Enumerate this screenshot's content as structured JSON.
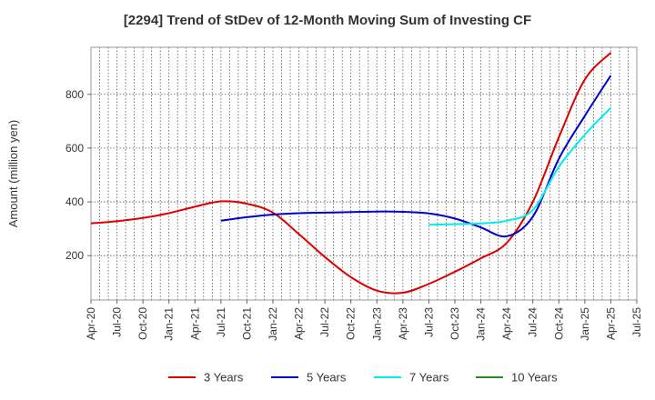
{
  "chart_data": {
    "type": "line",
    "title": "[2294]  Trend of StDev of 12-Month Moving Sum of Investing CF",
    "xlabel": "",
    "ylabel": "Amount (million yen)",
    "ylim": [
      35,
      975
    ],
    "yticks": [
      200,
      400,
      600,
      800
    ],
    "x_tick_labels": [
      "Apr-20",
      "Jul-20",
      "Oct-20",
      "Jan-21",
      "Apr-21",
      "Jul-21",
      "Oct-21",
      "Jan-22",
      "Apr-22",
      "Jul-22",
      "Oct-22",
      "Jan-23",
      "Apr-23",
      "Jul-23",
      "Oct-23",
      "Jan-24",
      "Apr-24",
      "Jul-24",
      "Oct-24",
      "Jan-25",
      "Apr-25",
      "Jul-25"
    ],
    "grid": true,
    "legend_position": "bottom",
    "series": [
      {
        "name": "3 Years",
        "color": "#dd0000",
        "x": [
          "Apr-20",
          "Jul-20",
          "Oct-20",
          "Jan-21",
          "Apr-21",
          "Jul-21",
          "Oct-21",
          "Jan-22",
          "Apr-22",
          "Jul-22",
          "Oct-22",
          "Jan-23",
          "Apr-23",
          "Jul-23",
          "Oct-23",
          "Jan-24",
          "Apr-24",
          "Jul-24",
          "Oct-24",
          "Jan-25",
          "Apr-25"
        ],
        "values": [
          320,
          328,
          340,
          358,
          382,
          402,
          393,
          360,
          280,
          195,
          120,
          70,
          62,
          95,
          140,
          190,
          248,
          400,
          640,
          855,
          955
        ]
      },
      {
        "name": "5 Years",
        "color": "#0000cc",
        "x": [
          "Jul-21",
          "Oct-21",
          "Jan-22",
          "Apr-22",
          "Jul-22",
          "Oct-22",
          "Jan-23",
          "Apr-23",
          "Jul-23",
          "Oct-23",
          "Jan-24",
          "Apr-24",
          "Jul-24",
          "Oct-24",
          "Jan-25",
          "Apr-25"
        ],
        "values": [
          330,
          343,
          353,
          358,
          360,
          362,
          364,
          363,
          357,
          338,
          305,
          272,
          345,
          560,
          720,
          870
        ]
      },
      {
        "name": "7 Years",
        "color": "#00eeee",
        "x": [
          "Jul-23",
          "Oct-23",
          "Jan-24",
          "Apr-24",
          "Jul-24",
          "Oct-24",
          "Jan-25",
          "Apr-25"
        ],
        "values": [
          315,
          317,
          320,
          330,
          370,
          530,
          650,
          750
        ]
      },
      {
        "name": "10 Years",
        "color": "#228b22",
        "x": [],
        "values": []
      }
    ]
  }
}
